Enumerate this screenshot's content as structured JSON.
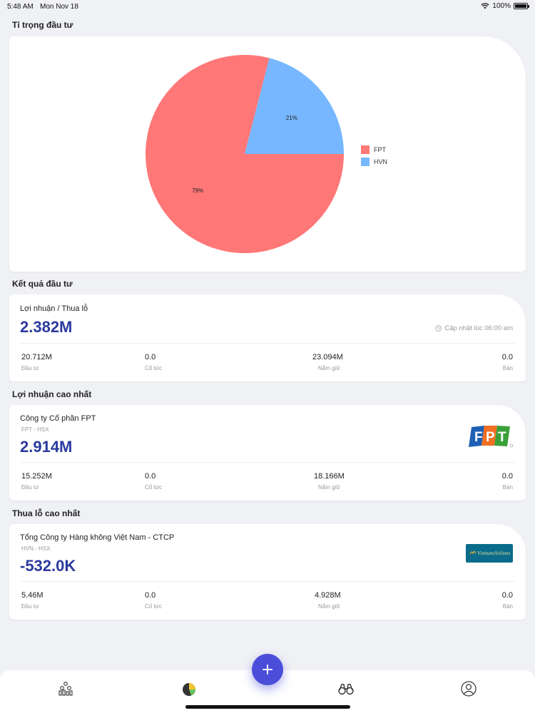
{
  "status_bar": {
    "time": "5:48 AM",
    "date": "Mon Nov 18",
    "battery": "100%",
    "battery_level": 1.0
  },
  "sections": {
    "allocation": "Tỉ trọng đầu tư",
    "results": "Kết quả đầu tư",
    "top_profit": "Lợi nhuận cao nhất",
    "top_loss": "Thua lỗ cao nhất"
  },
  "chart_data": {
    "type": "pie",
    "labels": [
      "FPT",
      "HVN"
    ],
    "values": [
      79,
      21
    ],
    "slice_labels": [
      "79%",
      "21%"
    ],
    "colors": [
      "#ff7777",
      "#77b7ff"
    ],
    "legend": "right"
  },
  "results": {
    "label": "Lợi nhuận / Thua lỗ",
    "value": "2.382M",
    "updated": "Cập nhật lúc 06:00 am",
    "stats": [
      {
        "value": "20.712M",
        "label": "Đầu tư"
      },
      {
        "value": "0.0",
        "label": "Cổ tức"
      },
      {
        "value": "23.094M",
        "label": "Nắm giữ"
      },
      {
        "value": "0.0",
        "label": "Bán"
      }
    ]
  },
  "top_profit": {
    "company": "Công ty Cổ phần FPT",
    "ticker": "FPT - HSX",
    "value": "2.914M",
    "logo": "FPT",
    "stats": [
      {
        "value": "15.252M",
        "label": "Đầu tư"
      },
      {
        "value": "0.0",
        "label": "Cổ tức"
      },
      {
        "value": "18.166M",
        "label": "Nắm giữ"
      },
      {
        "value": "0.0",
        "label": "Bán"
      }
    ]
  },
  "top_loss": {
    "company": "Tổng Công ty Hàng không Việt Nam - CTCP",
    "ticker": "HVN - HSX",
    "value": "-532.0K",
    "logo": "VietnamAirlines",
    "stats": [
      {
        "value": "5.46M",
        "label": "Đầu tư"
      },
      {
        "value": "0.0",
        "label": "Cổ tức"
      },
      {
        "value": "4.928M",
        "label": "Nắm giữ"
      },
      {
        "value": "0.0",
        "label": "Bán"
      }
    ]
  },
  "tabbar": {
    "icons": [
      "portfolio-icon",
      "pie-chart-icon",
      "add-icon",
      "binoculars-icon",
      "profile-icon"
    ],
    "accent": "#4a4ed8"
  }
}
